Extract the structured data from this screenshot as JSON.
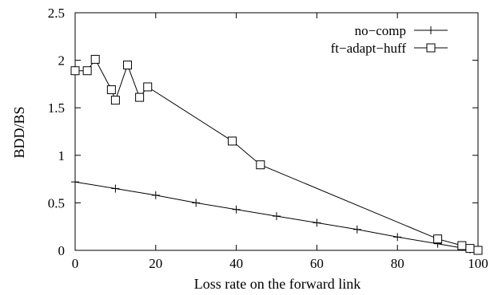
{
  "chart_data": {
    "type": "line",
    "xlabel": "Loss rate on the forward link",
    "ylabel": "BDD/BS",
    "xlim": [
      0,
      100
    ],
    "ylim": [
      0,
      2.5
    ],
    "x_ticks": [
      0,
      20,
      40,
      60,
      80,
      100
    ],
    "y_ticks": [
      0,
      0.5,
      1,
      1.5,
      2,
      2.5
    ],
    "x_tick_labels": [
      "0",
      "20",
      "40",
      "60",
      "80",
      "100"
    ],
    "y_tick_labels": [
      "0",
      "0.5",
      "1",
      "1.5",
      "2",
      "2.5"
    ],
    "grid": false,
    "legend_position": "top-right",
    "series": [
      {
        "name": "no−comp",
        "marker": "plus",
        "color": "#000000",
        "x": [
          0,
          10,
          20,
          30,
          40,
          50,
          60,
          70,
          80,
          90,
          98,
          100
        ],
        "y": [
          0.72,
          0.65,
          0.58,
          0.5,
          0.43,
          0.36,
          0.29,
          0.22,
          0.14,
          0.07,
          0.01,
          0.0
        ]
      },
      {
        "name": "ft−adapt−huff",
        "marker": "square",
        "color": "#000000",
        "x": [
          0,
          3,
          5,
          9,
          10,
          13,
          16,
          18,
          39,
          46,
          90,
          96,
          98,
          100
        ],
        "y": [
          1.89,
          1.89,
          2.01,
          1.69,
          1.58,
          1.95,
          1.61,
          1.72,
          1.15,
          0.9,
          0.12,
          0.05,
          0.02,
          0.0
        ]
      }
    ]
  }
}
